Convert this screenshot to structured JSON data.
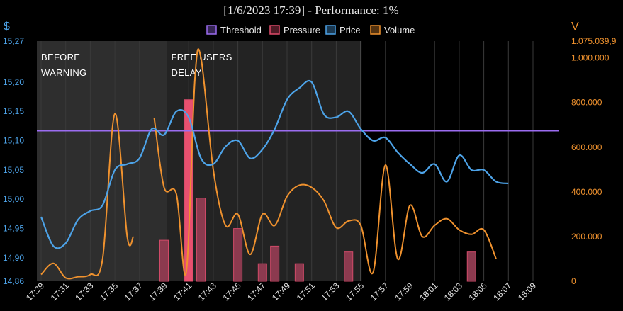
{
  "chart_data": {
    "type": "line",
    "title": "[1/6/2023 17:39] - Performance: 1%",
    "y_left_unit": "$",
    "y_right_unit": "V",
    "ylim_left": [
      14.86,
      15.27
    ],
    "ylim_right": [
      0,
      1075039.9
    ],
    "yticks_left": [
      "15,27",
      "15,20",
      "15,15",
      "15,10",
      "15,05",
      "15,00",
      "14,95",
      "14,90",
      "14,86"
    ],
    "yticks_right": [
      "1.075.039,9",
      "1.000.000",
      "800.000",
      "600.000",
      "400.000",
      "200.000",
      "0"
    ],
    "x_ticks": [
      "17:29",
      "17:31",
      "17:33",
      "17:35",
      "17:37",
      "17:39",
      "17:41",
      "17:43",
      "17:45",
      "17:47",
      "17:49",
      "17:51",
      "17:53",
      "17:55",
      "17:57",
      "17:59",
      "18:01",
      "18:03",
      "18:05",
      "18:07",
      "18:09"
    ],
    "legend": [
      {
        "name": "Threshold",
        "color": "#9b6cf0"
      },
      {
        "name": "Pressure",
        "color": "#e04a6a"
      },
      {
        "name": "Price",
        "color": "#4da3e8"
      },
      {
        "name": "Volume",
        "color": "#f0922e"
      }
    ],
    "annotations": [
      {
        "lines": [
          "BEFORE",
          "WARNING"
        ],
        "x_start": "17:29",
        "x_end": "17:39"
      },
      {
        "lines": [
          "FREE USERS",
          "DELAY"
        ],
        "x_start": "17:39",
        "x_end": "17:55"
      }
    ],
    "threshold": 15.117,
    "price": [
      {
        "t": 0,
        "v": 14.97
      },
      {
        "t": 1,
        "v": 14.92
      },
      {
        "t": 2,
        "v": 14.925
      },
      {
        "t": 3,
        "v": 14.965
      },
      {
        "t": 4,
        "v": 14.98
      },
      {
        "t": 5,
        "v": 14.99
      },
      {
        "t": 6,
        "v": 15.05
      },
      {
        "t": 7,
        "v": 15.06
      },
      {
        "t": 8,
        "v": 15.07
      },
      {
        "t": 9,
        "v": 15.12
      },
      {
        "t": 10,
        "v": 15.11
      },
      {
        "t": 11,
        "v": 15.15
      },
      {
        "t": 12,
        "v": 15.14
      },
      {
        "t": 13,
        "v": 15.07
      },
      {
        "t": 14,
        "v": 15.06
      },
      {
        "t": 15,
        "v": 15.09
      },
      {
        "t": 16,
        "v": 15.1
      },
      {
        "t": 17,
        "v": 15.07
      },
      {
        "t": 18,
        "v": 15.085
      },
      {
        "t": 19,
        "v": 15.12
      },
      {
        "t": 20,
        "v": 15.17
      },
      {
        "t": 21,
        "v": 15.19
      },
      {
        "t": 22,
        "v": 15.2
      },
      {
        "t": 23,
        "v": 15.145
      },
      {
        "t": 24,
        "v": 15.14
      },
      {
        "t": 25,
        "v": 15.15
      },
      {
        "t": 26,
        "v": 15.12
      },
      {
        "t": 27,
        "v": 15.1
      },
      {
        "t": 28,
        "v": 15.105
      },
      {
        "t": 29,
        "v": 15.08
      },
      {
        "t": 30,
        "v": 15.06
      },
      {
        "t": 31,
        "v": 15.045
      },
      {
        "t": 32,
        "v": 15.06
      },
      {
        "t": 33,
        "v": 15.03
      },
      {
        "t": 34,
        "v": 15.075
      },
      {
        "t": 35,
        "v": 15.05
      },
      {
        "t": 36,
        "v": 15.05
      },
      {
        "t": 37,
        "v": 15.03
      },
      {
        "t": 38,
        "v": 15.027
      }
    ],
    "volume_segments": [
      [
        {
          "t": 0,
          "v": 30000
        },
        {
          "t": 1,
          "v": 80000
        },
        {
          "t": 2,
          "v": 15000
        },
        {
          "t": 3,
          "v": 20000
        },
        {
          "t": 4,
          "v": 30000
        },
        {
          "t": 5,
          "v": 100000
        },
        {
          "t": 6,
          "v": 750000
        },
        {
          "t": 7,
          "v": 200000
        },
        {
          "t": 7.5,
          "v": 200000
        }
      ],
      [
        {
          "t": 9.2,
          "v": 730000
        },
        {
          "t": 10,
          "v": 420000
        },
        {
          "t": 11,
          "v": 390000
        },
        {
          "t": 11.8,
          "v": 40000
        },
        {
          "t": 12.5,
          "v": 900000
        },
        {
          "t": 13,
          "v": 1000000
        },
        {
          "t": 14,
          "v": 500000
        },
        {
          "t": 15,
          "v": 250000
        },
        {
          "t": 16,
          "v": 300000
        },
        {
          "t": 17,
          "v": 120000
        },
        {
          "t": 18,
          "v": 300000
        },
        {
          "t": 19,
          "v": 250000
        },
        {
          "t": 20,
          "v": 380000
        },
        {
          "t": 21,
          "v": 430000
        },
        {
          "t": 22,
          "v": 420000
        },
        {
          "t": 23,
          "v": 360000
        },
        {
          "t": 24,
          "v": 240000
        },
        {
          "t": 25,
          "v": 270000
        },
        {
          "t": 26,
          "v": 250000
        },
        {
          "t": 27,
          "v": 40000
        },
        {
          "t": 28,
          "v": 520000
        },
        {
          "t": 29,
          "v": 100000
        },
        {
          "t": 30,
          "v": 340000
        },
        {
          "t": 31,
          "v": 200000
        },
        {
          "t": 32,
          "v": 250000
        },
        {
          "t": 33,
          "v": 280000
        },
        {
          "t": 34,
          "v": 230000
        },
        {
          "t": 35,
          "v": 210000
        },
        {
          "t": 36,
          "v": 230000
        },
        {
          "t": 37,
          "v": 100000
        }
      ]
    ],
    "pressure": [
      {
        "t": 10,
        "v": 14.93
      },
      {
        "t": 12,
        "v": 15.17
      },
      {
        "t": 13,
        "v": 15.002
      },
      {
        "t": 16,
        "v": 14.95
      },
      {
        "t": 18,
        "v": 14.89
      },
      {
        "t": 19,
        "v": 14.92
      },
      {
        "t": 21,
        "v": 14.89
      },
      {
        "t": 25,
        "v": 14.91
      },
      {
        "t": 35,
        "v": 14.91
      }
    ]
  }
}
